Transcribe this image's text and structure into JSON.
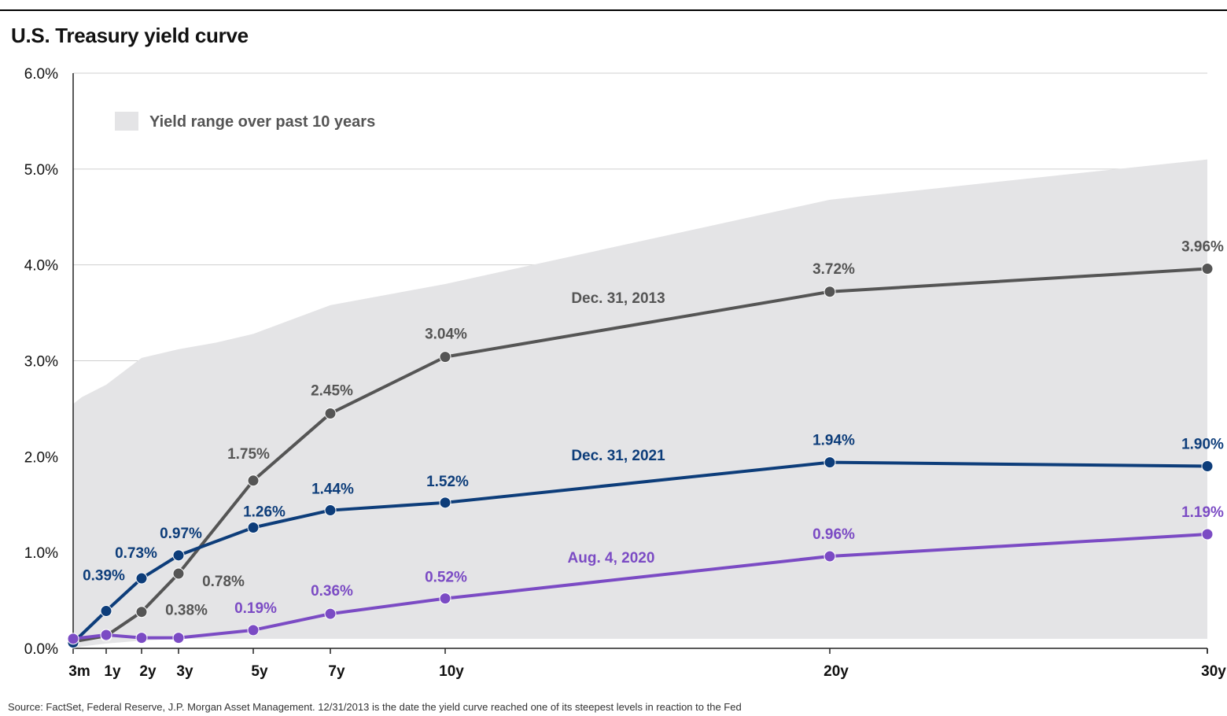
{
  "title": "U.S. Treasury yield curve",
  "source": "Source: FactSet, Federal Reserve, J.P. Morgan Asset Management. 12/31/2013 is the date the yield curve reached one of its steepest levels in reaction to the Fed",
  "legend": {
    "range_label": "Yield range over past 10 years"
  },
  "chart_data": {
    "type": "line",
    "title": "U.S. Treasury yield curve",
    "xlabel": "",
    "ylabel": "",
    "ylim": [
      0,
      6
    ],
    "y_ticks": [
      "0.0%",
      "1.0%",
      "2.0%",
      "3.0%",
      "4.0%",
      "5.0%",
      "6.0%"
    ],
    "x_tick_labels": [
      "3m",
      "1y",
      "2y",
      "3y",
      "5y",
      "7y",
      "10y",
      "20y",
      "30y"
    ],
    "x_years": [
      0.25,
      1,
      2,
      3,
      5,
      7,
      10,
      20,
      30
    ],
    "grid": "horizontal",
    "range_band": {
      "name": "Yield range over past 10 years",
      "x": [
        0.25,
        0.5,
        1,
        2,
        3,
        4,
        5,
        7,
        10,
        20,
        30
      ],
      "upper": [
        2.55,
        2.62,
        2.75,
        3.03,
        3.12,
        3.19,
        3.28,
        3.58,
        3.8,
        4.68,
        5.1
      ],
      "lower": [
        0.0,
        0.02,
        0.05,
        0.08,
        0.1,
        0.1,
        0.1,
        0.1,
        0.1,
        0.1,
        0.1
      ]
    },
    "series": [
      {
        "name": "Dec. 31, 2013",
        "color": "#555555",
        "x": [
          0.25,
          1,
          2,
          3,
          5,
          7,
          10,
          20,
          30
        ],
        "values": [
          0.07,
          0.13,
          0.38,
          0.78,
          1.75,
          2.45,
          3.04,
          3.72,
          3.96
        ],
        "labels": [
          "",
          "",
          "0.38%",
          "0.78%",
          "1.75%",
          "2.45%",
          "3.04%",
          "3.72%",
          "3.96%"
        ]
      },
      {
        "name": "Dec. 31, 2021",
        "color": "#0d3d7a",
        "x": [
          0.25,
          1,
          2,
          3,
          5,
          7,
          10,
          20,
          30
        ],
        "values": [
          0.06,
          0.39,
          0.73,
          0.97,
          1.26,
          1.44,
          1.52,
          1.94,
          1.9
        ],
        "labels": [
          "",
          "0.39%",
          "0.73%",
          "0.97%",
          "1.26%",
          "1.44%",
          "1.52%",
          "1.94%",
          "1.90%"
        ]
      },
      {
        "name": "Aug. 4, 2020",
        "color": "#7b4bc4",
        "x": [
          0.25,
          1,
          2,
          3,
          5,
          7,
          10,
          20,
          30
        ],
        "values": [
          0.1,
          0.14,
          0.11,
          0.11,
          0.19,
          0.36,
          0.52,
          0.96,
          1.19
        ],
        "labels": [
          "",
          "",
          "",
          "",
          "0.19%",
          "0.36%",
          "0.52%",
          "0.96%",
          "1.19%"
        ]
      }
    ]
  }
}
